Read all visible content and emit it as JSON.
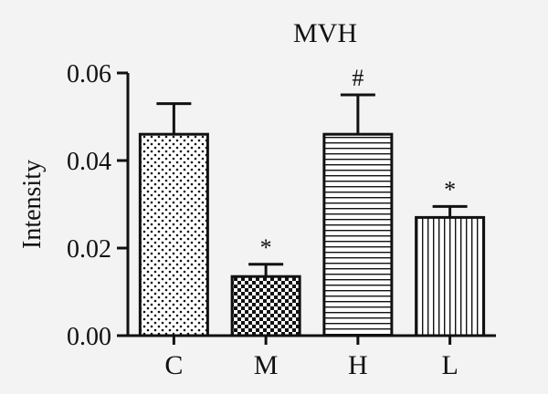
{
  "chart_data": {
    "type": "bar",
    "title": "MVH",
    "xlabel": "",
    "ylabel": "Intensity",
    "categories": [
      "C",
      "M",
      "H",
      "L"
    ],
    "values": [
      0.046,
      0.0135,
      0.046,
      0.027
    ],
    "errors": [
      0.007,
      0.0028,
      0.009,
      0.0025
    ],
    "annotations": [
      "",
      "*",
      "#",
      "*"
    ],
    "patterns": [
      "dots",
      "checker",
      "horizontal-lines",
      "vertical-lines"
    ],
    "ylim": [
      0,
      0.06
    ],
    "yticks": [
      "0.00",
      "0.02",
      "0.04",
      "0.06"
    ],
    "ytick_values": [
      0,
      0.02,
      0.04,
      0.06
    ],
    "grid": false,
    "legend": "none",
    "colors": {
      "bar_fill": "#ffffff",
      "ink": "#111111",
      "background": "#f3f3f3"
    }
  }
}
